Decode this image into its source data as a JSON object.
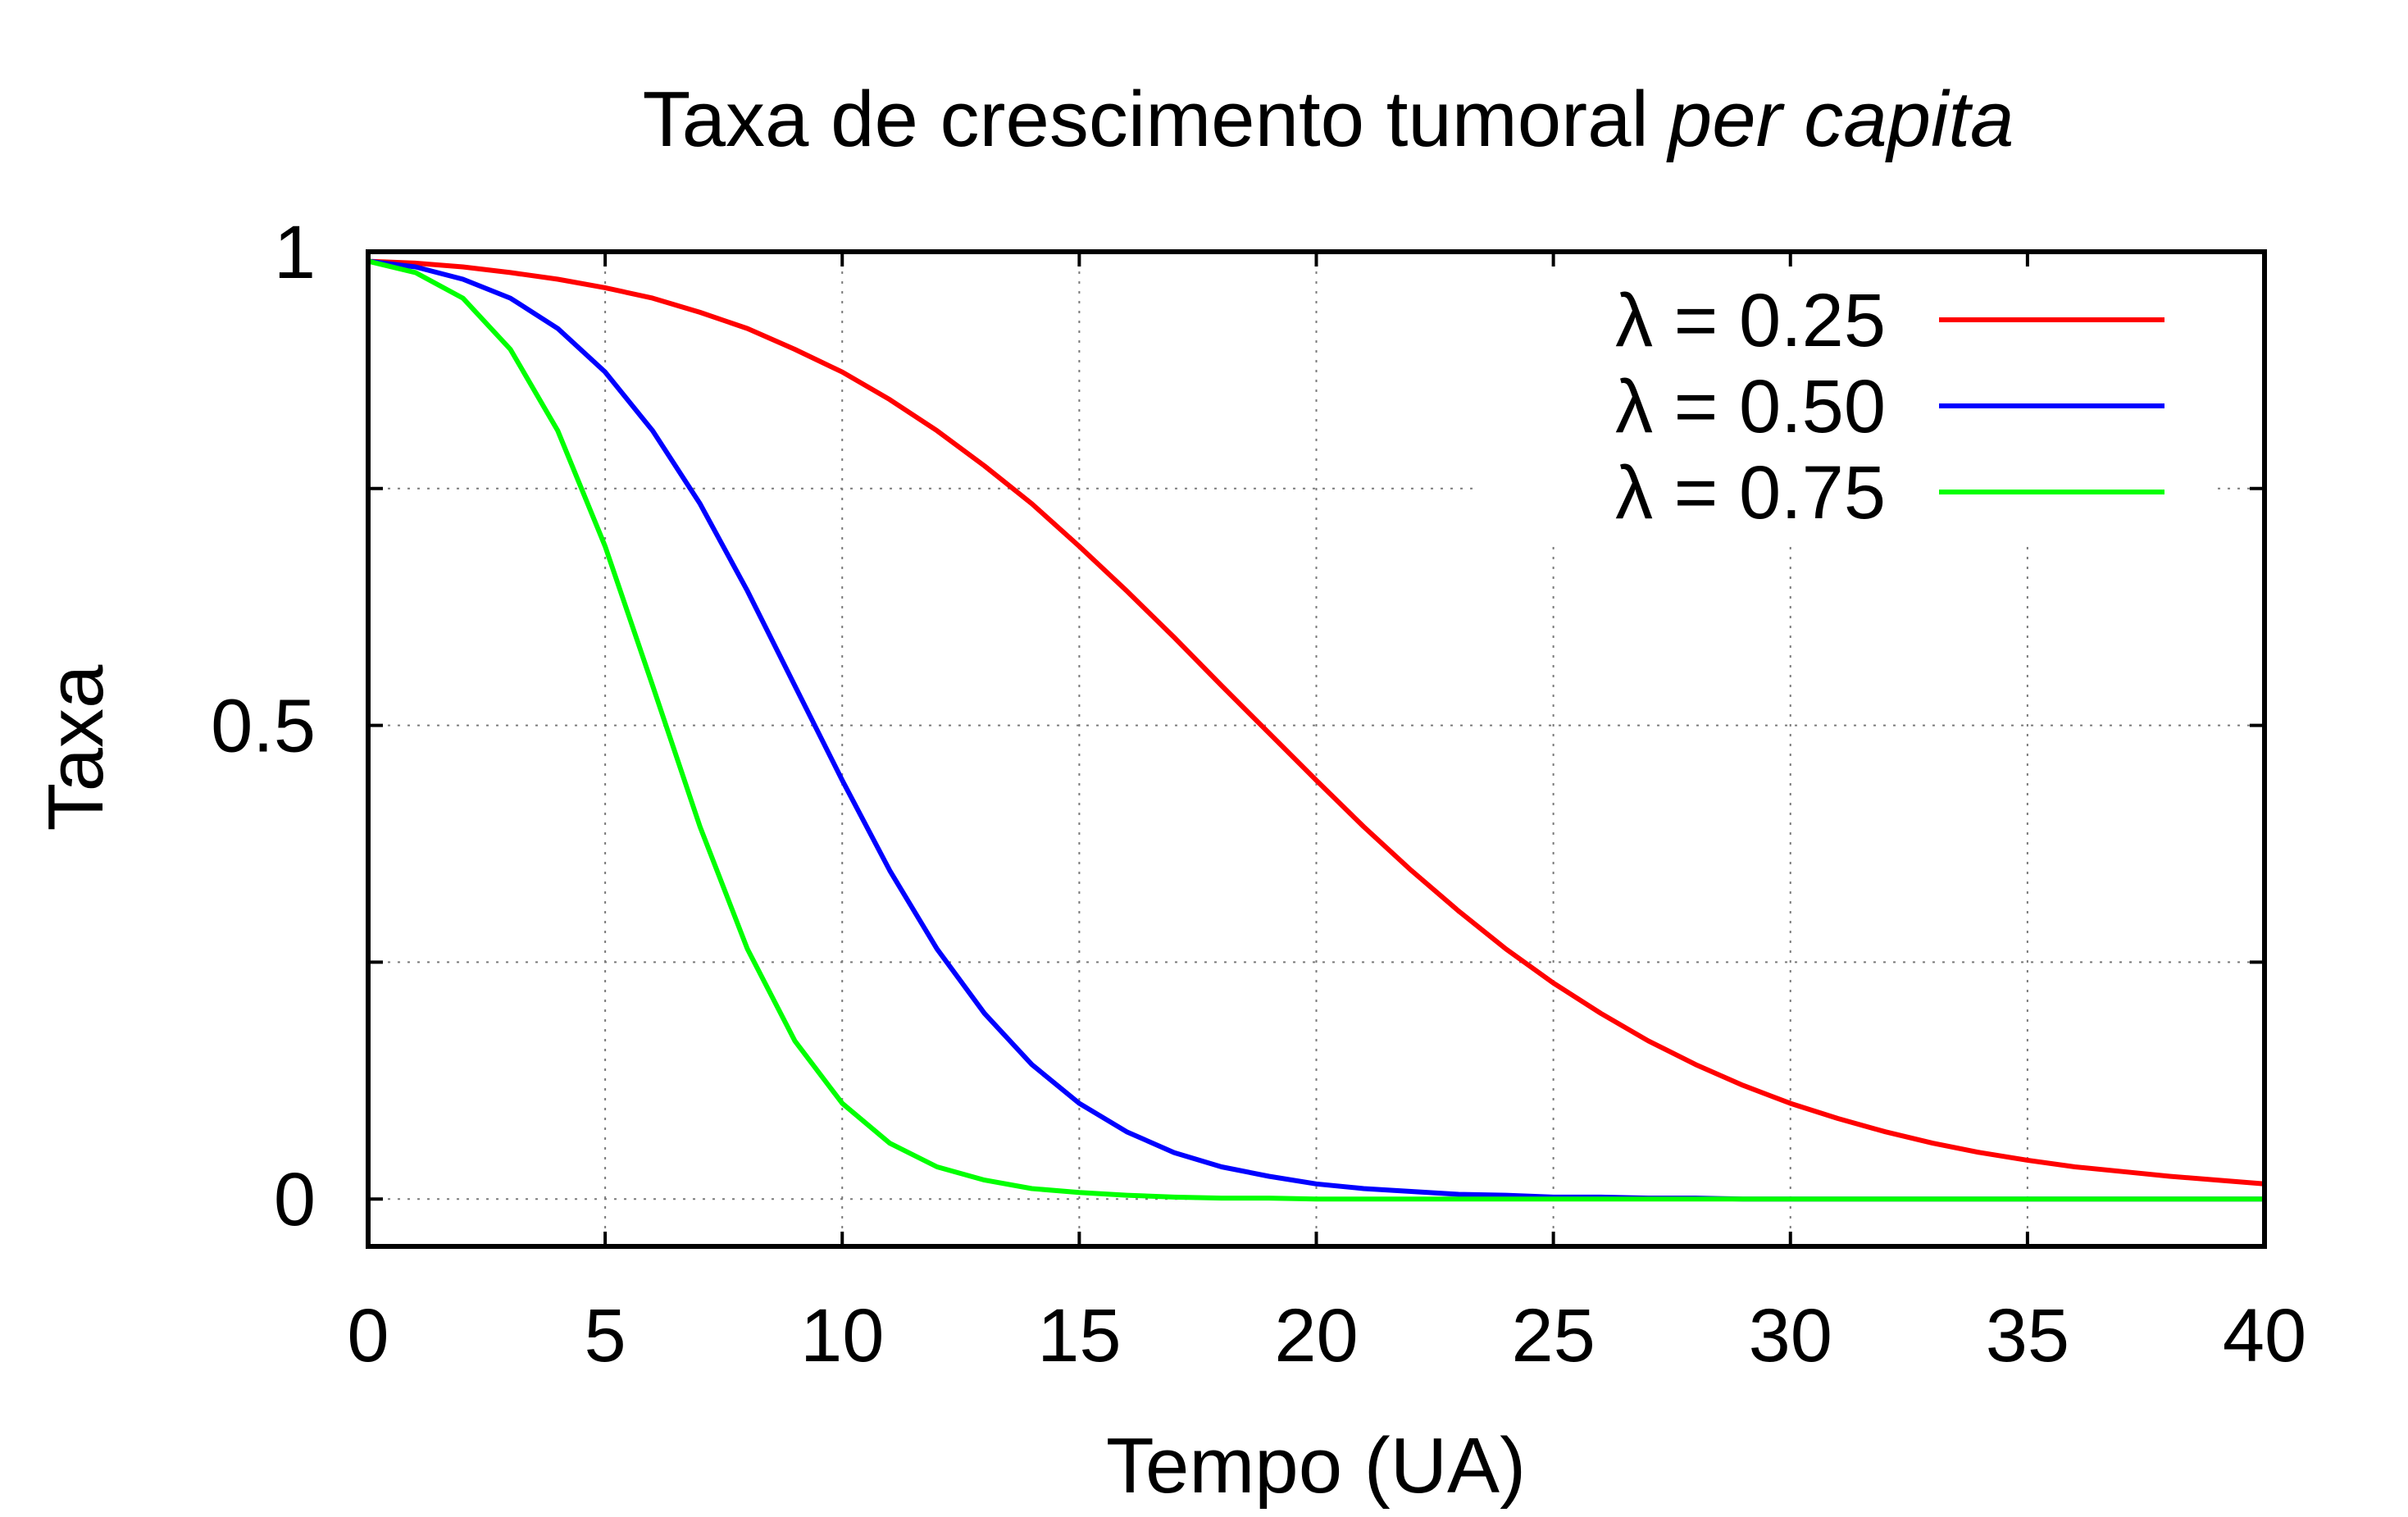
{
  "chart_data": {
    "type": "line",
    "title": "Taxa de crescimento tumoral",
    "title_italic": "per capita",
    "xlabel": "Tempo (UA)",
    "ylabel": "Taxa",
    "xlim": [
      0,
      40
    ],
    "ylim": [
      -0.05,
      1.0
    ],
    "x_ticks": [
      0,
      5,
      10,
      15,
      20,
      25,
      30,
      35,
      40
    ],
    "x_tick_labels": [
      "0",
      "5",
      "10",
      "15",
      "20",
      "25",
      "30",
      "35",
      "40"
    ],
    "y_ticks": [
      0,
      0.25,
      0.5,
      0.75,
      1
    ],
    "y_tick_labels": [
      "0",
      "",
      "0.5",
      "",
      "1"
    ],
    "grid": true,
    "legend_position": "top-right",
    "x": [
      0,
      1,
      2,
      3,
      4,
      5,
      6,
      7,
      8,
      9,
      10,
      11,
      12,
      13,
      14,
      15,
      16,
      17,
      18,
      19,
      20,
      21,
      22,
      23,
      24,
      25,
      26,
      27,
      28,
      29,
      30,
      31,
      32,
      33,
      34,
      35,
      36,
      37,
      38,
      39,
      40
    ],
    "series": [
      {
        "name": "λ = 0.25",
        "color": "#ff0000",
        "values": [
          0.99,
          0.988,
          0.984,
          0.978,
          0.971,
          0.962,
          0.951,
          0.936,
          0.919,
          0.897,
          0.873,
          0.844,
          0.811,
          0.774,
          0.734,
          0.689,
          0.642,
          0.593,
          0.542,
          0.492,
          0.442,
          0.393,
          0.347,
          0.304,
          0.264,
          0.228,
          0.196,
          0.167,
          0.142,
          0.12,
          0.101,
          0.085,
          0.071,
          0.059,
          0.049,
          0.041,
          0.034,
          0.029,
          0.024,
          0.02,
          0.016
        ]
      },
      {
        "name": "λ = 0.50",
        "color": "#0000ff",
        "values": [
          0.99,
          0.984,
          0.971,
          0.951,
          0.919,
          0.873,
          0.811,
          0.734,
          0.642,
          0.542,
          0.442,
          0.347,
          0.264,
          0.196,
          0.142,
          0.101,
          0.071,
          0.049,
          0.034,
          0.024,
          0.016,
          0.011,
          0.008,
          0.005,
          0.004,
          0.002,
          0.002,
          0.001,
          0.001,
          0.0,
          0.0,
          0.0,
          0.0,
          0.0,
          0.0,
          0.0,
          0.0,
          0.0,
          0.0,
          0.0,
          0.0
        ]
      },
      {
        "name": "λ = 0.75",
        "color": "#00ff00",
        "values": [
          0.99,
          0.978,
          0.951,
          0.897,
          0.811,
          0.689,
          0.542,
          0.393,
          0.264,
          0.167,
          0.101,
          0.059,
          0.034,
          0.02,
          0.011,
          0.007,
          0.004,
          0.002,
          0.001,
          0.001,
          0.0,
          0.0,
          0.0,
          0.0,
          0.0,
          0.0,
          0.0,
          0.0,
          0.0,
          0.0,
          0.0,
          0.0,
          0.0,
          0.0,
          0.0,
          0.0,
          0.0,
          0.0,
          0.0,
          0.0,
          0.0
        ]
      }
    ]
  }
}
